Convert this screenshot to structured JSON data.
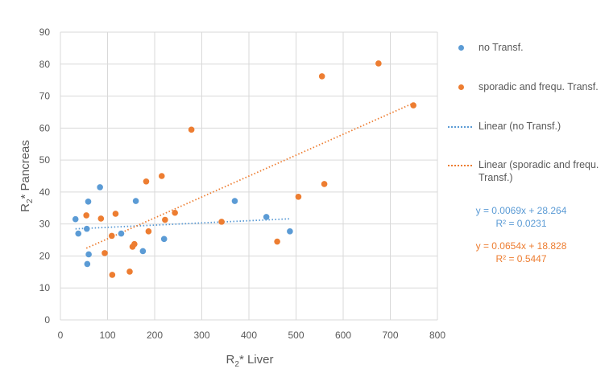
{
  "chart_data": {
    "type": "scatter",
    "title": "",
    "xlabel_main": "R",
    "xlabel_sub": "2",
    "xlabel_rest": "* Liver",
    "ylabel_main": "R",
    "ylabel_sub": "2",
    "ylabel_rest": "* Pancreas",
    "xlim": [
      0,
      800
    ],
    "ylim": [
      0,
      90
    ],
    "xticks": [
      0,
      100,
      200,
      300,
      400,
      500,
      600,
      700,
      800
    ],
    "yticks": [
      0,
      10,
      20,
      30,
      40,
      50,
      60,
      70,
      80,
      90
    ],
    "grid": true,
    "legend_position": "right",
    "series": [
      {
        "name": "no Transf.",
        "color": "#5b9bd5",
        "points": [
          [
            32,
            31.5
          ],
          [
            38,
            27
          ],
          [
            56,
            28.5
          ],
          [
            57,
            17.5
          ],
          [
            59,
            37
          ],
          [
            60,
            20.5
          ],
          [
            84,
            41.5
          ],
          [
            129,
            27
          ],
          [
            160,
            37.2
          ],
          [
            175,
            21.5
          ],
          [
            220,
            25.3
          ],
          [
            370,
            37.2
          ],
          [
            437,
            32.2
          ],
          [
            487,
            27.7
          ]
        ],
        "trendline": {
          "name": "Linear (no Transf.)",
          "slope": 0.0069,
          "intercept": 28.264,
          "r2": 0.0231,
          "x_range": [
            32,
            487
          ]
        }
      },
      {
        "name": "sporadic and frequ. Transf.",
        "color": "#ed7d31",
        "points": [
          [
            55,
            32.7
          ],
          [
            86,
            31.7
          ],
          [
            94,
            20.9
          ],
          [
            109,
            26.3
          ],
          [
            110,
            14.1
          ],
          [
            117,
            33.2
          ],
          [
            147,
            15.1
          ],
          [
            153,
            22.9
          ],
          [
            157,
            23.7
          ],
          [
            182,
            43.3
          ],
          [
            187,
            27.7
          ],
          [
            215,
            45
          ],
          [
            222,
            31.3
          ],
          [
            243,
            33.5
          ],
          [
            278,
            59.5
          ],
          [
            342,
            30.7
          ],
          [
            460,
            24.5
          ],
          [
            505,
            38.5
          ],
          [
            555,
            76.2
          ],
          [
            560,
            42.5
          ],
          [
            675,
            80.2
          ],
          [
            749,
            67.1
          ]
        ],
        "trendline": {
          "name": "Linear (sporadic and frequ. Transf.)",
          "slope": 0.0654,
          "intercept": 18.828,
          "r2": 0.5447,
          "x_range": [
            55,
            749
          ]
        }
      }
    ],
    "legend": [
      {
        "label": "no Transf.",
        "kind": "dot",
        "color": "#5b9bd5"
      },
      {
        "label": "sporadic and frequ. Transf.",
        "kind": "dot",
        "color": "#ed7d31"
      },
      {
        "label": "Linear (no Transf.)",
        "kind": "line",
        "color": "#5b9bd5"
      },
      {
        "label": "Linear (sporadic and frequ. Transf.)",
        "kind": "line",
        "color": "#ed7d31"
      }
    ],
    "equations": [
      {
        "line1": "y = 0.0069x + 28.264",
        "line2": "R² = 0.0231",
        "color": "#5b9bd5"
      },
      {
        "line1": "y = 0.0654x + 18.828",
        "line2": "R² = 0.5447",
        "color": "#ed7d31"
      }
    ]
  }
}
